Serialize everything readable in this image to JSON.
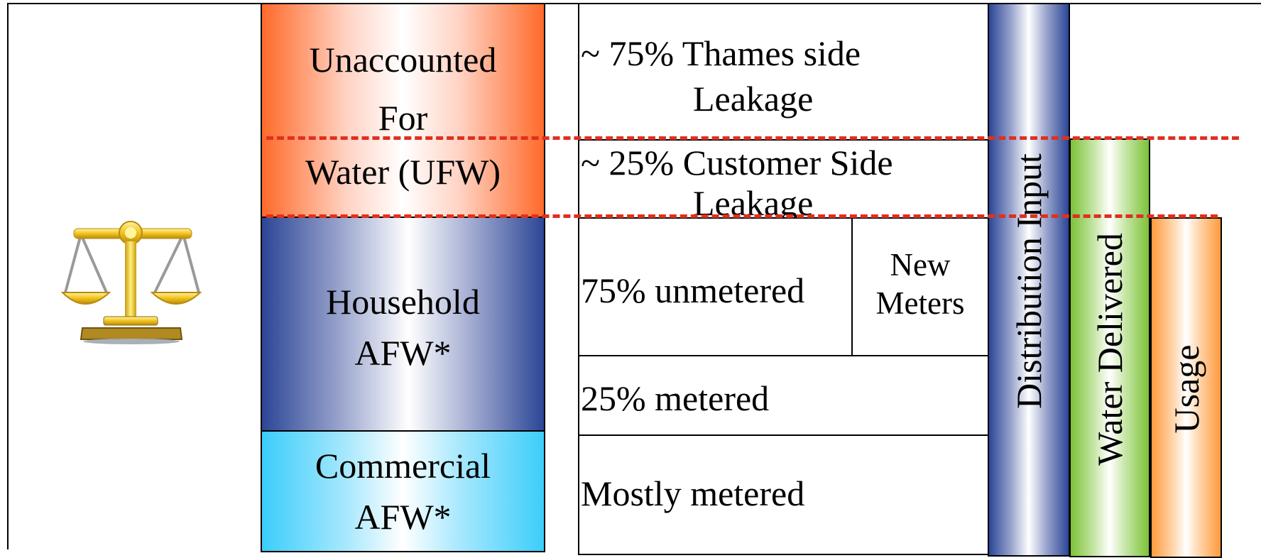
{
  "blocks": {
    "ufw": {
      "line1": "Unaccounted",
      "line2": "For",
      "line3": "Water (UFW)"
    },
    "household": {
      "line1": "Household",
      "line2": "AFW*"
    },
    "commercial": {
      "line1": "Commercial",
      "line2": "AFW*"
    }
  },
  "details": {
    "thames_line1": "~ 75% Thames side",
    "thames_line2": "Leakage",
    "customer_line1": "~ 25% Customer Side",
    "customer_line2": "Leakage",
    "unmetered": "75% unmetered",
    "new_meters_line1": "New",
    "new_meters_line2": "Meters",
    "metered": "25% metered",
    "mostly_metered": "Mostly metered"
  },
  "bars": {
    "distribution_input": "Distribution Input",
    "water_delivered": "Water Delivered",
    "usage": "Usage"
  },
  "colors": {
    "ufw": "#ff6a2a",
    "household": "#2c4696",
    "commercial": "#3ccdfa",
    "water_delivered": "#7cc23a",
    "usage": "#ff9a3c",
    "dashed_line": "#e0301e"
  },
  "icons": {
    "balance": "balance-scale-icon"
  }
}
